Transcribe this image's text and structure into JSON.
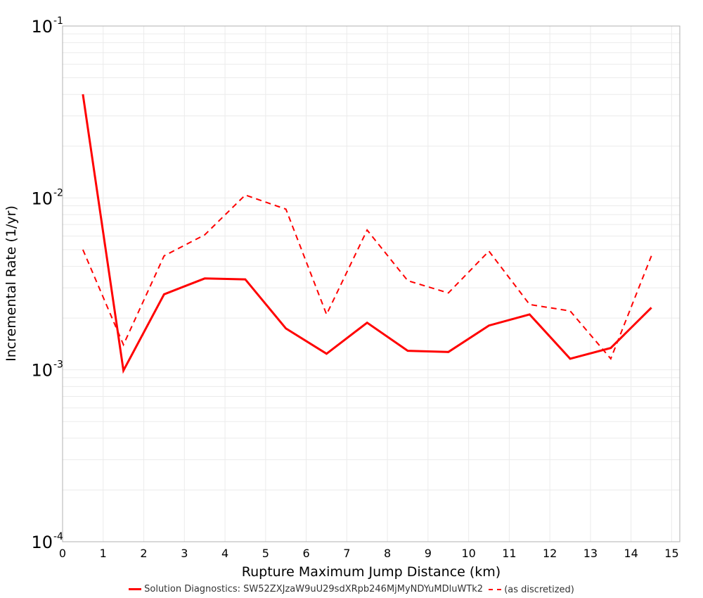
{
  "chart_data": {
    "type": "line",
    "title": "",
    "xlabel": "Rupture Maximum Jump Distance (km)",
    "ylabel": "Incremental Rate (1/yr)",
    "xlim": [
      0,
      15.2
    ],
    "ylim": [
      0.0001,
      0.1
    ],
    "yscale": "log",
    "grid": true,
    "legend_position": "bottom",
    "x_ticks": [
      "0",
      "1",
      "2",
      "3",
      "4",
      "5",
      "6",
      "7",
      "8",
      "9",
      "10",
      "11",
      "12",
      "13",
      "14",
      "15"
    ],
    "y_ticks": [
      {
        "base": "10",
        "exp": "-1",
        "value": 0.1
      },
      {
        "base": "10",
        "exp": "-2",
        "value": 0.01
      },
      {
        "base": "10",
        "exp": "-3",
        "value": 0.001
      },
      {
        "base": "10",
        "exp": "-4",
        "value": 0.0001
      }
    ],
    "x": [
      0.5,
      1.5,
      2.5,
      3.5,
      4.5,
      5.5,
      6.5,
      7.5,
      8.5,
      9.5,
      10.5,
      11.5,
      12.5,
      13.5,
      14.5
    ],
    "series": [
      {
        "name": "Solution Diagnostics: SW52ZXJzaW9uU29sdXRpb246MjMyNDYuMDluWTk2",
        "style": "solid",
        "color": "#ff0000",
        "values": [
          0.0401,
          0.00099,
          0.00275,
          0.0034,
          0.00336,
          0.00174,
          0.00124,
          0.00188,
          0.00129,
          0.00127,
          0.00181,
          0.0021,
          0.00116,
          0.00134,
          0.0023
        ]
      },
      {
        "name": "(as discretized)",
        "style": "dashed",
        "color": "#ff0000",
        "values": [
          0.005,
          0.0014,
          0.0046,
          0.0061,
          0.0104,
          0.0086,
          0.0021,
          0.0065,
          0.0033,
          0.0028,
          0.0049,
          0.0024,
          0.0022,
          0.00116,
          0.0046
        ]
      }
    ]
  },
  "legend": {
    "items": [
      {
        "label": "Solution Diagnostics: SW52ZXJzaW9uU29sdXRpb246MjMyNDYuMDluWTk2",
        "style": "solid"
      },
      {
        "label": "(as discretized)",
        "style": "dashed"
      }
    ]
  }
}
